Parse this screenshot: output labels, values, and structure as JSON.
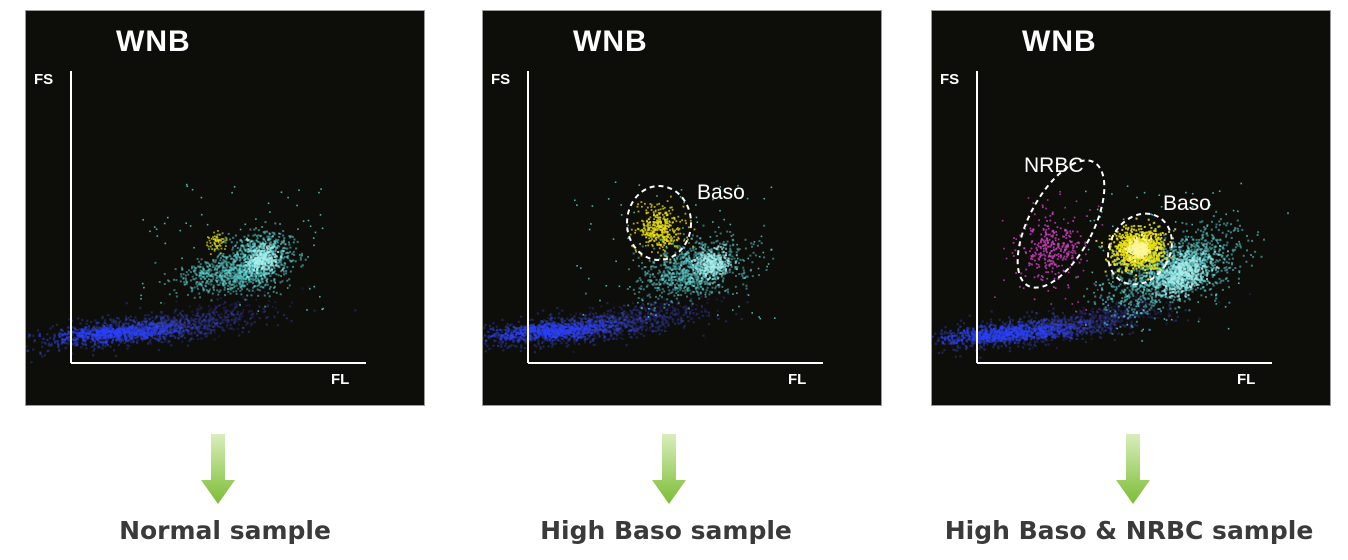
{
  "panels": [
    {
      "title": "WNB",
      "y_axis": "FS",
      "x_axis": "FL",
      "caption": "Normal sample",
      "annotations": []
    },
    {
      "title": "WNB",
      "y_axis": "FS",
      "x_axis": "FL",
      "caption": "High Baso sample",
      "annotations": [
        "Baso"
      ]
    },
    {
      "title": "WNB",
      "y_axis": "FS",
      "x_axis": "FL",
      "caption": "High Baso & NRBC sample",
      "annotations": [
        "NRBC",
        "Baso"
      ]
    }
  ],
  "colors": {
    "background": "#0d0d0a",
    "wbc": "#5fd8d8",
    "baso": "#e8e010",
    "nrbc": "#d040c0",
    "ghost": "#3850d0",
    "arrow": "#8cc63f",
    "caption": "#3a3a3a"
  }
}
